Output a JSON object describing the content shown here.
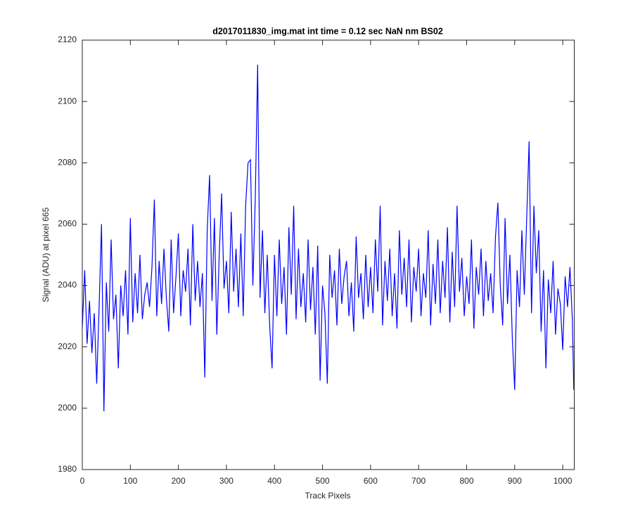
{
  "chart_data": {
    "type": "line",
    "title": "d2017011830_img.mat int time = 0.12 sec  NaN nm BS02",
    "x_label": "Track Pixels",
    "y_label": "Signal (ADU) at pixel 665",
    "xlim": [
      0,
      1024
    ],
    "ylim": [
      1980,
      2120
    ],
    "xticks": [
      0,
      100,
      200,
      300,
      400,
      500,
      600,
      700,
      800,
      900,
      1000
    ],
    "yticks": [
      1980,
      2000,
      2020,
      2040,
      2060,
      2080,
      2100,
      2120
    ],
    "grid": false,
    "series": [
      {
        "color": "#0000ff",
        "x": [
          0,
          5,
          10,
          15,
          20,
          25,
          30,
          35,
          40,
          45,
          50,
          55,
          60,
          65,
          70,
          75,
          80,
          85,
          90,
          95,
          100,
          105,
          110,
          115,
          120,
          125,
          130,
          135,
          140,
          145,
          150,
          155,
          160,
          165,
          170,
          175,
          180,
          185,
          190,
          195,
          200,
          205,
          210,
          215,
          220,
          225,
          230,
          235,
          240,
          245,
          250,
          255,
          260,
          265,
          270,
          275,
          280,
          285,
          290,
          295,
          300,
          305,
          310,
          315,
          320,
          325,
          330,
          335,
          340,
          345,
          350,
          355,
          360,
          365,
          370,
          375,
          380,
          385,
          390,
          395,
          400,
          405,
          410,
          415,
          420,
          425,
          430,
          435,
          440,
          445,
          450,
          455,
          460,
          465,
          470,
          475,
          480,
          485,
          490,
          495,
          500,
          505,
          510,
          515,
          520,
          525,
          530,
          535,
          540,
          545,
          550,
          555,
          560,
          565,
          570,
          575,
          580,
          585,
          590,
          595,
          600,
          605,
          610,
          615,
          620,
          625,
          630,
          635,
          640,
          645,
          650,
          655,
          660,
          665,
          670,
          675,
          680,
          685,
          690,
          695,
          700,
          705,
          710,
          715,
          720,
          725,
          730,
          735,
          740,
          745,
          750,
          755,
          760,
          765,
          770,
          775,
          780,
          785,
          790,
          795,
          800,
          805,
          810,
          815,
          820,
          825,
          830,
          835,
          840,
          845,
          850,
          855,
          860,
          865,
          870,
          875,
          880,
          885,
          890,
          895,
          900,
          905,
          910,
          915,
          920,
          925,
          930,
          935,
          940,
          945,
          950,
          955,
          960,
          965,
          970,
          975,
          980,
          985,
          990,
          995,
          1000,
          1005,
          1010,
          1015,
          1020,
          1023
        ],
        "values": [
          2026,
          2045,
          2021,
          2035,
          2018,
          2031,
          2008,
          2033,
          2060,
          1999,
          2041,
          2025,
          2055,
          2029,
          2037,
          2013,
          2040,
          2030,
          2045,
          2024,
          2062,
          2028,
          2044,
          2031,
          2050,
          2029,
          2037,
          2041,
          2033,
          2046,
          2068,
          2030,
          2048,
          2034,
          2052,
          2036,
          2025,
          2055,
          2031,
          2043,
          2057,
          2030,
          2045,
          2038,
          2052,
          2027,
          2060,
          2035,
          2048,
          2033,
          2044,
          2010,
          2058,
          2076,
          2035,
          2062,
          2024,
          2050,
          2070,
          2039,
          2048,
          2031,
          2064,
          2038,
          2052,
          2033,
          2057,
          2030,
          2066,
          2080,
          2081,
          2040,
          2068,
          2112,
          2036,
          2058,
          2031,
          2050,
          2027,
          2013,
          2050,
          2030,
          2055,
          2034,
          2046,
          2024,
          2059,
          2037,
          2066,
          2029,
          2052,
          2033,
          2044,
          2028,
          2055,
          2032,
          2046,
          2024,
          2053,
          2009,
          2040,
          2031,
          2008,
          2050,
          2036,
          2045,
          2027,
          2052,
          2034,
          2043,
          2048,
          2030,
          2041,
          2025,
          2056,
          2036,
          2044,
          2029,
          2050,
          2033,
          2046,
          2031,
          2055,
          2038,
          2066,
          2027,
          2048,
          2035,
          2052,
          2030,
          2044,
          2026,
          2058,
          2037,
          2049,
          2033,
          2055,
          2028,
          2046,
          2038,
          2052,
          2030,
          2044,
          2036,
          2058,
          2027,
          2047,
          2034,
          2055,
          2031,
          2048,
          2036,
          2059,
          2028,
          2051,
          2033,
          2066,
          2038,
          2049,
          2030,
          2043,
          2034,
          2055,
          2026,
          2046,
          2037,
          2052,
          2030,
          2048,
          2035,
          2044,
          2031,
          2056,
          2067,
          2040,
          2027,
          2062,
          2034,
          2050,
          2023,
          2006,
          2045,
          2033,
          2058,
          2037,
          2062,
          2087,
          2031,
          2066,
          2044,
          2058,
          2025,
          2045,
          2013,
          2042,
          2031,
          2048,
          2024,
          2039,
          2034,
          2019,
          2043,
          2033,
          2046,
          2029,
          2006
        ]
      }
    ]
  }
}
